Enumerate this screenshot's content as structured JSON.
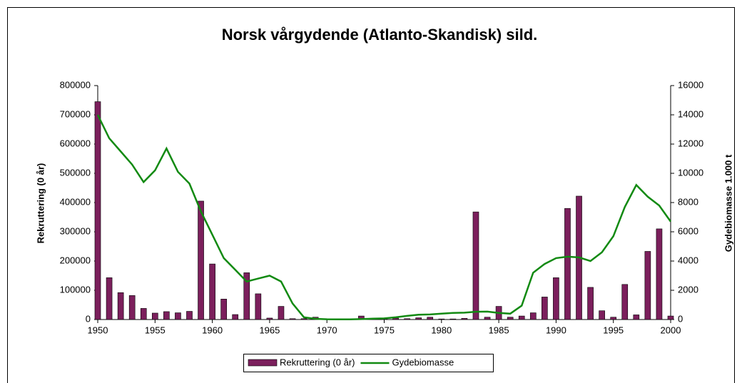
{
  "chart_data": {
    "type": "bar-line",
    "title": "Norsk vårgydende (Atlanto-Skandisk) sild.",
    "y_label": "Rekruttering (0 år)",
    "y2_label": "Gydebiomasse 1.000 t",
    "x": [
      1950,
      1951,
      1952,
      1953,
      1954,
      1955,
      1956,
      1957,
      1958,
      1959,
      1960,
      1961,
      1962,
      1963,
      1964,
      1965,
      1966,
      1967,
      1968,
      1969,
      1970,
      1971,
      1972,
      1973,
      1974,
      1975,
      1976,
      1977,
      1978,
      1979,
      1980,
      1981,
      1982,
      1983,
      1984,
      1985,
      1986,
      1987,
      1988,
      1989,
      1990,
      1991,
      1992,
      1993,
      1994,
      1995,
      1996,
      1997,
      1998,
      1999,
      2000
    ],
    "xlim": [
      1950,
      2000
    ],
    "xticks": [
      1950,
      1955,
      1960,
      1965,
      1970,
      1975,
      1980,
      1985,
      1990,
      1995,
      2000
    ],
    "ylim": [
      0,
      800000
    ],
    "yticks": [
      0,
      100000,
      200000,
      300000,
      400000,
      500000,
      600000,
      700000,
      800000
    ],
    "y2lim": [
      0,
      16000
    ],
    "y2ticks": [
      0,
      2000,
      4000,
      6000,
      8000,
      10000,
      12000,
      14000,
      16000
    ],
    "series": [
      {
        "name": "Rekruttering (0 år)",
        "kind": "bar",
        "color": "#7b1f5c",
        "values": [
          745000,
          143000,
          92000,
          82000,
          38000,
          22000,
          27000,
          23000,
          28000,
          405000,
          190000,
          70000,
          17000,
          160000,
          88000,
          5000,
          45000,
          3000,
          3000,
          8000,
          2000,
          1000,
          1000,
          12000,
          3000,
          3000,
          5000,
          3000,
          6000,
          8000,
          2000,
          2000,
          4000,
          368000,
          8000,
          45000,
          8000,
          12000,
          23000,
          77000,
          143000,
          380000,
          422000,
          110000,
          30000,
          8000,
          120000,
          16000,
          233000,
          310000,
          12000
        ]
      },
      {
        "name": "Gydebiomasse",
        "kind": "line",
        "axis": "y2",
        "color": "#128a12",
        "values": [
          14000,
          12400,
          11500,
          10600,
          9400,
          10200,
          11700,
          10100,
          9300,
          7400,
          5800,
          4200,
          3400,
          2600,
          2800,
          3000,
          2600,
          1100,
          150,
          50,
          20,
          10,
          10,
          30,
          60,
          80,
          150,
          250,
          330,
          350,
          400,
          450,
          470,
          530,
          540,
          450,
          400,
          950,
          3200,
          3800,
          4200,
          4300,
          4250,
          4000,
          4600,
          5700,
          7700,
          9200,
          8400,
          7800,
          6700
        ]
      }
    ]
  }
}
